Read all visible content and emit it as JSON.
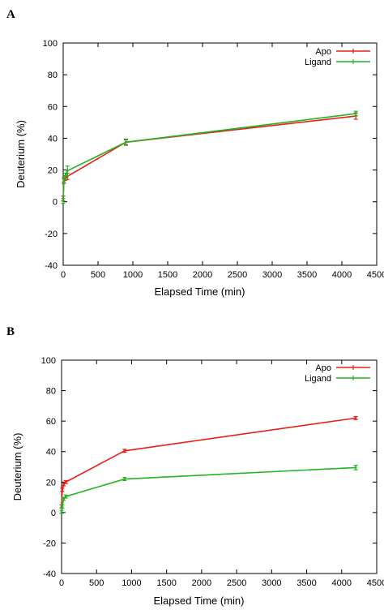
{
  "chart_data": [
    {
      "panel_label": "A",
      "type": "line",
      "xlabel": "Elapsed Time (min)",
      "ylabel": "Deuterium (%)",
      "xlim": [
        0,
        4500
      ],
      "ylim": [
        -40,
        100
      ],
      "xticks": [
        0,
        500,
        1000,
        1500,
        2000,
        2500,
        3000,
        3500,
        4000,
        4500
      ],
      "yticks": [
        -40,
        -20,
        0,
        20,
        40,
        60,
        80,
        100
      ],
      "grid": false,
      "legend_position": "top-right",
      "series": [
        {
          "name": "Apo",
          "color": "#e8201a",
          "x": [
            0,
            10,
            30,
            60,
            900,
            4200
          ],
          "y": [
            2,
            13,
            15,
            16,
            37.5,
            54
          ],
          "err": [
            1.5,
            1.5,
            1.5,
            2,
            1.5,
            2
          ]
        },
        {
          "name": "Ligand",
          "color": "#22b422",
          "x": [
            0,
            10,
            30,
            60,
            900,
            4200
          ],
          "y": [
            0.5,
            14,
            16,
            19.5,
            37.5,
            55.5
          ],
          "err": [
            1.5,
            1.5,
            2,
            3,
            2,
            1.5
          ]
        }
      ]
    },
    {
      "panel_label": "B",
      "type": "line",
      "xlabel": "Elapsed Time (min)",
      "ylabel": "Deuterium (%)",
      "xlim": [
        0,
        4500
      ],
      "ylim": [
        -40,
        100
      ],
      "xticks": [
        0,
        500,
        1000,
        1500,
        2000,
        2500,
        3000,
        3500,
        4000,
        4500
      ],
      "yticks": [
        -40,
        -20,
        0,
        20,
        40,
        60,
        80,
        100
      ],
      "grid": false,
      "legend_position": "top-right",
      "series": [
        {
          "name": "Apo",
          "color": "#e8201a",
          "x": [
            0,
            10,
            30,
            60,
            900,
            4200
          ],
          "y": [
            4,
            15,
            18.5,
            20,
            40.5,
            62
          ],
          "err": [
            1,
            1,
            1,
            1,
            1,
            1
          ]
        },
        {
          "name": "Ligand",
          "color": "#22b422",
          "x": [
            0,
            10,
            30,
            60,
            900,
            4200
          ],
          "y": [
            0.5,
            4,
            9,
            10.5,
            22,
            29.5
          ],
          "err": [
            1,
            1,
            1,
            1,
            1,
            1.5
          ]
        }
      ]
    }
  ]
}
